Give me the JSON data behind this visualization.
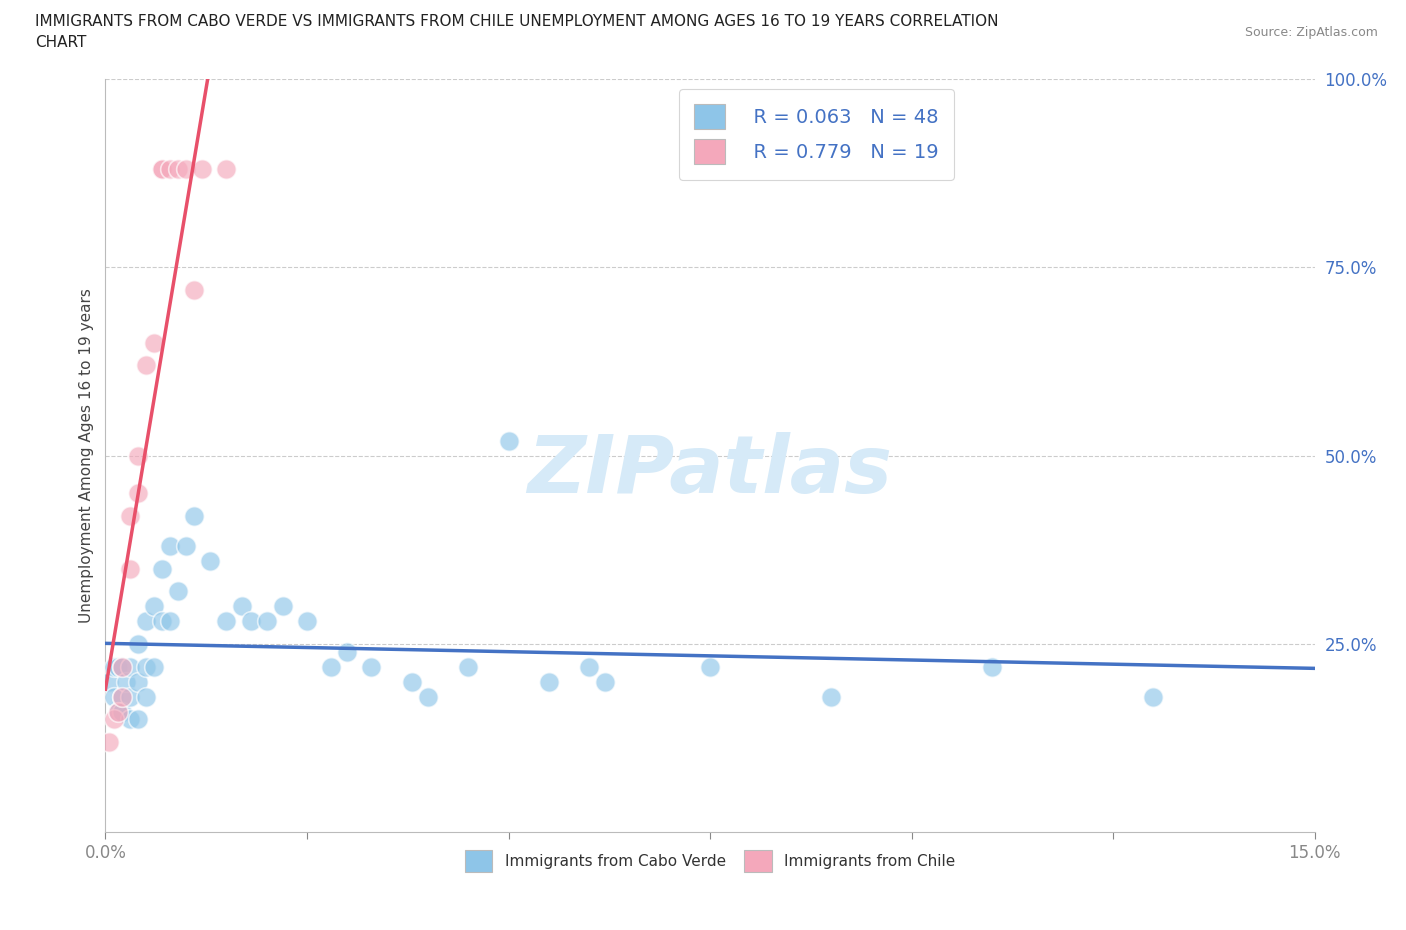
{
  "title_line1": "IMMIGRANTS FROM CABO VERDE VS IMMIGRANTS FROM CHILE UNEMPLOYMENT AMONG AGES 16 TO 19 YEARS CORRELATION",
  "title_line2": "CHART",
  "source": "Source: ZipAtlas.com",
  "ylabel": "Unemployment Among Ages 16 to 19 years",
  "xlim": [
    0,
    0.15
  ],
  "ylim": [
    0,
    1.0
  ],
  "xticks": [
    0.0,
    0.025,
    0.05,
    0.075,
    0.1,
    0.125,
    0.15
  ],
  "xticklabels": [
    "0.0%",
    "",
    "",
    "",
    "",
    "",
    "15.0%"
  ],
  "yticks": [
    0.0,
    0.25,
    0.5,
    0.75,
    1.0
  ],
  "yticklabels_right": [
    "",
    "25.0%",
    "50.0%",
    "75.0%",
    "100.0%"
  ],
  "cabo_verde_color": "#8EC5E8",
  "chile_color": "#F4A8BB",
  "cabo_verde_line_color": "#4472C4",
  "chile_line_color": "#E8506A",
  "watermark_color": "#D6EAF8",
  "legend_R_cabo": "R = 0.063",
  "legend_N_cabo": "N = 48",
  "legend_R_chile": "R = 0.779",
  "legend_N_chile": "N = 19",
  "cabo_x": [
    0.0005,
    0.001,
    0.001,
    0.0015,
    0.0015,
    0.002,
    0.002,
    0.002,
    0.0025,
    0.003,
    0.003,
    0.003,
    0.004,
    0.004,
    0.004,
    0.005,
    0.005,
    0.005,
    0.006,
    0.006,
    0.007,
    0.007,
    0.008,
    0.008,
    0.009,
    0.01,
    0.011,
    0.013,
    0.015,
    0.017,
    0.018,
    0.02,
    0.022,
    0.025,
    0.028,
    0.03,
    0.033,
    0.038,
    0.04,
    0.045,
    0.05,
    0.055,
    0.06,
    0.062,
    0.075,
    0.09,
    0.11,
    0.13
  ],
  "cabo_y": [
    0.2,
    0.18,
    0.22,
    0.22,
    0.16,
    0.18,
    0.22,
    0.16,
    0.2,
    0.22,
    0.18,
    0.15,
    0.25,
    0.2,
    0.15,
    0.28,
    0.22,
    0.18,
    0.3,
    0.22,
    0.35,
    0.28,
    0.38,
    0.28,
    0.32,
    0.38,
    0.42,
    0.36,
    0.28,
    0.3,
    0.28,
    0.28,
    0.3,
    0.28,
    0.22,
    0.24,
    0.22,
    0.2,
    0.18,
    0.22,
    0.52,
    0.2,
    0.22,
    0.2,
    0.22,
    0.18,
    0.22,
    0.18
  ],
  "chile_x": [
    0.0005,
    0.001,
    0.0015,
    0.002,
    0.002,
    0.003,
    0.003,
    0.004,
    0.004,
    0.005,
    0.006,
    0.007,
    0.007,
    0.008,
    0.009,
    0.01,
    0.011,
    0.012,
    0.015
  ],
  "chile_y": [
    0.12,
    0.15,
    0.16,
    0.18,
    0.22,
    0.42,
    0.35,
    0.5,
    0.45,
    0.62,
    0.65,
    0.88,
    0.88,
    0.88,
    0.88,
    0.88,
    0.72,
    0.88,
    0.88
  ]
}
